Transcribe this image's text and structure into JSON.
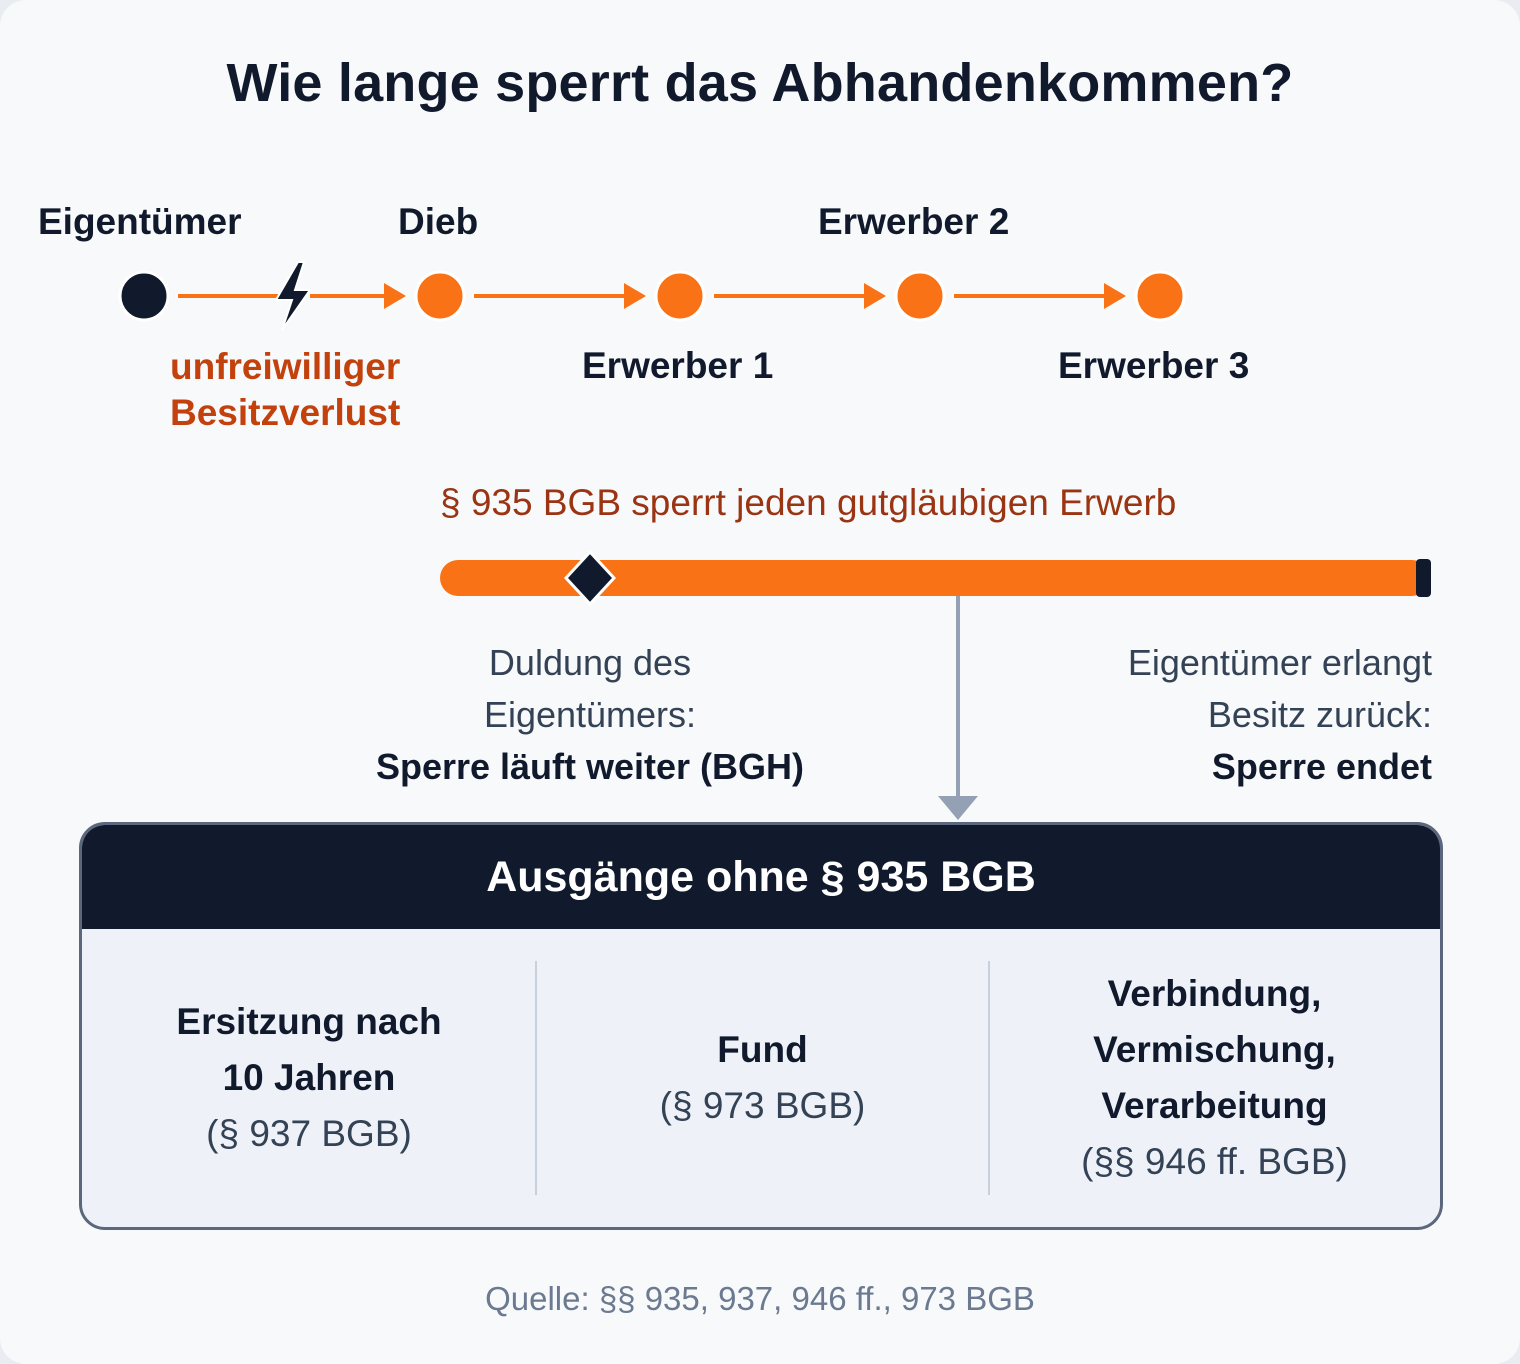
{
  "title": "Wie lange sperrt das Abhandenkommen?",
  "chain": {
    "owner_label": "Eigentümer",
    "loss_label": [
      "unfreiwilliger",
      "Besitzverlust"
    ],
    "thief_label": "Dieb",
    "acquirer1_label": "Erwerber 1",
    "acquirer2_label": "Erwerber 2",
    "acquirer3_label": "Erwerber 3"
  },
  "block": {
    "caption": "§ 935 BGB sperrt jeden gutgläubigen Erwerb",
    "left_note": [
      "Duldung des",
      "Eigentümers:",
      "Sperre läuft weiter (BGH)"
    ],
    "right_note": [
      "Eigentümer erlangt",
      "Besitz zurück:",
      "Sperre endet"
    ]
  },
  "exits": {
    "header": "Ausgänge ohne § 935 BGB",
    "columns": [
      {
        "title_lines": [
          "Ersitzung nach",
          "10 Jahren"
        ],
        "ref": "(§ 937 BGB)"
      },
      {
        "title_lines": [
          "Fund"
        ],
        "ref": "(§ 973 BGB)"
      },
      {
        "title_lines": [
          "Verbindung,",
          "Vermischung,",
          "Verarbeitung"
        ],
        "ref": "(§§ 946 ff. BGB)"
      }
    ]
  },
  "source": "Quelle: §§ 935, 937, 946 ff., 973 BGB",
  "colors": {
    "orange": "#f97316",
    "dark_orange": "#c2410c",
    "navy": "#111a2c",
    "arrow_gray": "#94a0b4",
    "slate": "#344256"
  }
}
